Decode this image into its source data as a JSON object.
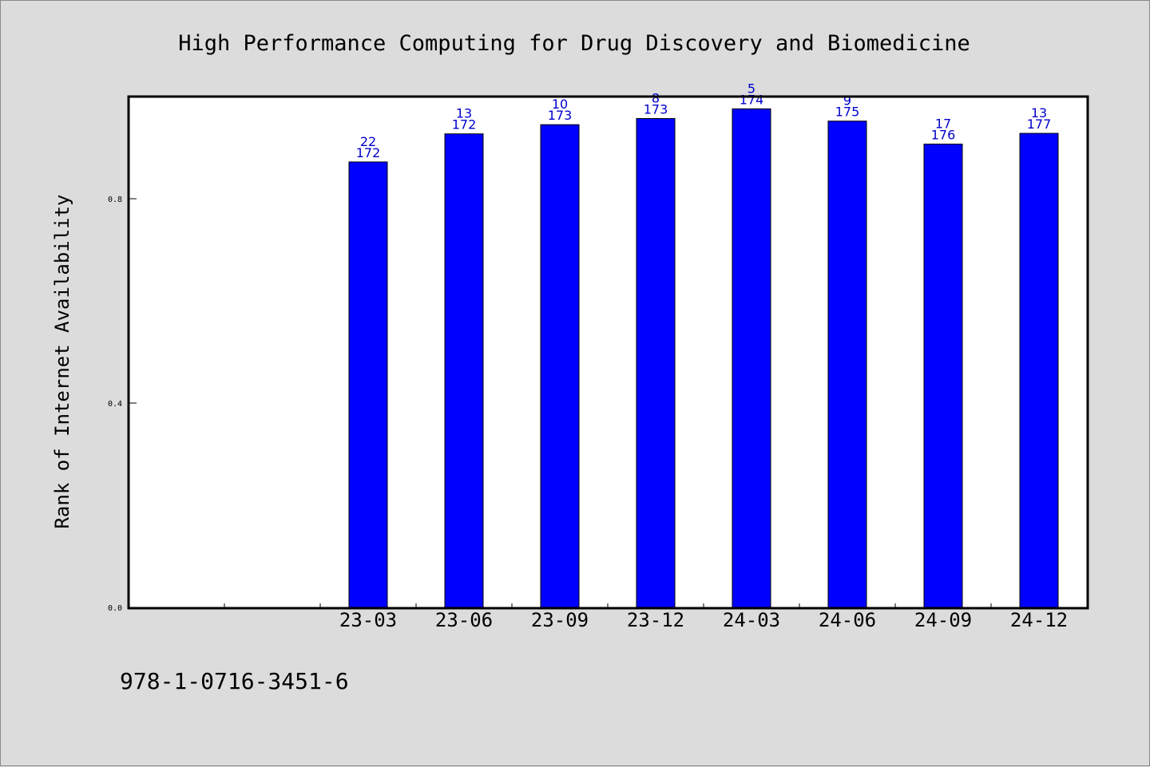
{
  "chart_data": {
    "type": "bar",
    "title": "High Performance Computing for Drug Discovery and Biomedicine",
    "xlabel": "",
    "ylabel": "Rank of Internet Availability",
    "y_ticks": [
      "0.0",
      "0.4",
      "0.8"
    ],
    "ylim": [
      0,
      1.0
    ],
    "categories": [
      "23-03",
      "23-06",
      "23-09",
      "23-12",
      "24-03",
      "24-06",
      "24-09",
      "24-12"
    ],
    "values": [
      0.872,
      0.927,
      0.945,
      0.957,
      0.976,
      0.952,
      0.907,
      0.928
    ],
    "labels_upper": [
      "22",
      "13",
      "10",
      "8",
      "5",
      "9",
      "17",
      "13"
    ],
    "labels_lower": [
      "172",
      "172",
      "173",
      "173",
      "174",
      "175",
      "176",
      "177"
    ],
    "bar_color": "#0000ff",
    "label_color": "#0000cc",
    "grid": false
  },
  "footer": {
    "isbn": "978-1-0716-3451-6"
  }
}
